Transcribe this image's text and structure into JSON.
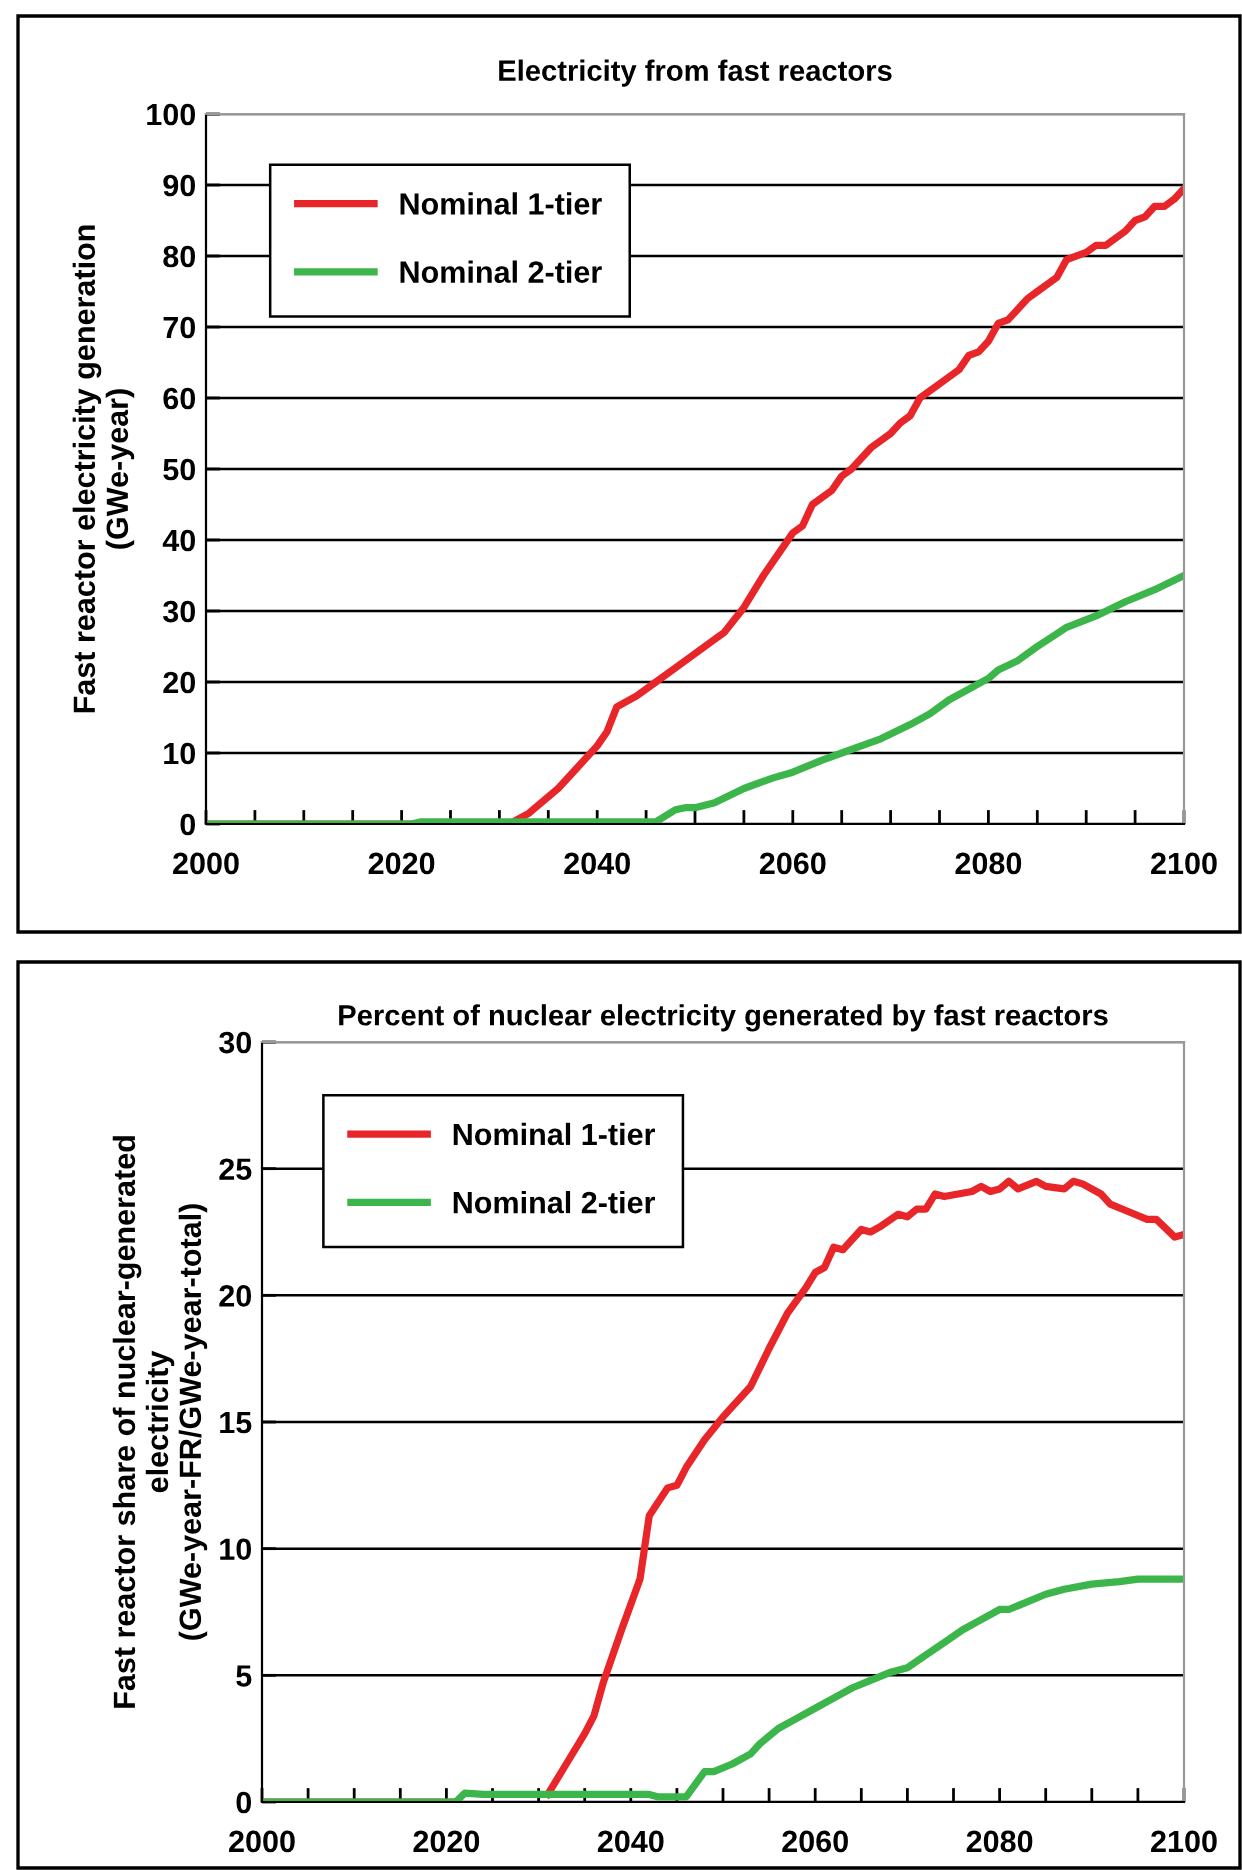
{
  "chart_data": [
    {
      "type": "line",
      "title": "Electricity from fast reactors",
      "ylabel": "Fast reactor electricity generation\n(GWe-year)",
      "xlim": [
        2000,
        2100
      ],
      "ylim": [
        0,
        100
      ],
      "xticks": [
        2000,
        {
          "value": 2005,
          "label": null
        },
        {
          "value": 2010,
          "label": null
        },
        {
          "value": 2015,
          "label": null
        },
        2020,
        {
          "value": 2025,
          "label": null
        },
        {
          "value": 2030,
          "label": null
        },
        {
          "value": 2035,
          "label": null
        },
        2040,
        {
          "value": 2045,
          "label": null
        },
        {
          "value": 2050,
          "label": null
        },
        {
          "value": 2055,
          "label": null
        },
        2060,
        {
          "value": 2065,
          "label": null
        },
        {
          "value": 2070,
          "label": null
        },
        {
          "value": 2075,
          "label": null
        },
        2080,
        {
          "value": 2085,
          "label": null
        },
        {
          "value": 2090,
          "label": null
        },
        {
          "value": 2095,
          "label": null
        },
        2100
      ],
      "yticks": [
        0,
        10,
        20,
        30,
        40,
        50,
        60,
        70,
        80,
        90,
        100
      ],
      "grid": "y",
      "legend": "top left",
      "marker": "none",
      "line_style": "solid",
      "series": [
        {
          "name": "Nominal 1-tier",
          "color": "#e8262a",
          "x": [
            2000,
            2031,
            2033,
            2036,
            2038,
            2040,
            2041,
            2042,
            2044,
            2046,
            2048,
            2050,
            2052,
            2053,
            2055,
            2057,
            2059,
            2060,
            2061,
            2062,
            2064,
            2065,
            2066,
            2068,
            2069,
            2070,
            2071,
            2072,
            2073,
            2075,
            2077,
            2078,
            2079,
            2080,
            2081,
            2082,
            2084,
            2085,
            2087,
            2088,
            2090,
            2091,
            2092,
            2094,
            2095,
            2096,
            2097,
            2098,
            2099,
            2100
          ],
          "values": [
            0,
            0,
            1.5,
            5,
            8,
            11,
            13,
            16.5,
            18,
            20,
            22,
            24,
            26,
            27,
            30.5,
            35,
            39,
            41,
            42,
            45,
            47,
            49,
            50,
            53,
            54,
            55,
            56.5,
            57.5,
            60,
            62,
            64,
            66,
            66.5,
            68,
            70.5,
            71,
            74,
            75,
            77,
            79.5,
            80.5,
            81.5,
            81.5,
            83.5,
            85,
            85.5,
            87,
            87,
            88,
            89.5
          ]
        },
        {
          "name": "Nominal 2-tier",
          "color": "#3cb54a",
          "x": [
            2000,
            2021,
            2022,
            2046,
            2048,
            2049,
            2050,
            2052,
            2055,
            2058,
            2060,
            2063,
            2065,
            2067,
            2069,
            2072,
            2074,
            2076,
            2078,
            2080,
            2081,
            2083,
            2085,
            2087,
            2088,
            2091,
            2094,
            2097,
            2100
          ],
          "values": [
            0,
            0,
            0.3,
            0.3,
            2,
            2.3,
            2.3,
            3,
            5,
            6.5,
            7.3,
            9,
            10,
            11,
            12,
            14,
            15.5,
            17.5,
            19,
            20.5,
            21.7,
            23,
            25,
            26.8,
            27.7,
            29.3,
            31.3,
            33,
            35
          ]
        }
      ]
    },
    {
      "type": "line",
      "title": "Percent of nuclear electricity generated by fast reactors",
      "ylabel": "Fast reactor share of nuclear-generated\nelectricity\n(GWe-year-FR/GWe-year-total)",
      "xlim": [
        2000,
        2100
      ],
      "ylim": [
        0,
        30
      ],
      "xticks": [
        2000,
        {
          "value": 2005,
          "label": null
        },
        {
          "value": 2010,
          "label": null
        },
        {
          "value": 2015,
          "label": null
        },
        2020,
        {
          "value": 2025,
          "label": null
        },
        {
          "value": 2030,
          "label": null
        },
        {
          "value": 2035,
          "label": null
        },
        2040,
        {
          "value": 2045,
          "label": null
        },
        {
          "value": 2050,
          "label": null
        },
        {
          "value": 2055,
          "label": null
        },
        2060,
        {
          "value": 2065,
          "label": null
        },
        {
          "value": 2070,
          "label": null
        },
        {
          "value": 2075,
          "label": null
        },
        2080,
        {
          "value": 2085,
          "label": null
        },
        {
          "value": 2090,
          "label": null
        },
        {
          "value": 2095,
          "label": null
        },
        2100
      ],
      "yticks": [
        0,
        5,
        10,
        15,
        20,
        25,
        30
      ],
      "grid": "y",
      "legend": "top left",
      "marker": "none",
      "line_style": "solid",
      "series": [
        {
          "name": "Nominal 1-tier",
          "color": "#e8262a",
          "x": [
            2000,
            2021,
            2022,
            2031,
            2033,
            2035,
            2036,
            2037,
            2039,
            2041,
            2042,
            2044,
            2045,
            2046,
            2048,
            2050,
            2053,
            2055,
            2057,
            2059,
            2060,
            2061,
            2062,
            2063,
            2065,
            2066,
            2067,
            2069,
            2070,
            2071,
            2072,
            2073,
            2074,
            2077,
            2078,
            2079,
            2080,
            2081,
            2082,
            2084,
            2085,
            2087,
            2088,
            2089,
            2091,
            2092,
            2094,
            2096,
            2097,
            2099,
            2100
          ],
          "values": [
            0,
            0,
            null,
            0.3,
            1.5,
            2.7,
            3.4,
            4.7,
            6.8,
            8.8,
            11.3,
            12.4,
            12.5,
            13.2,
            14.3,
            15.2,
            16.4,
            17.9,
            19.3,
            20.3,
            20.9,
            21.1,
            21.9,
            21.8,
            22.6,
            22.5,
            22.7,
            23.2,
            23.1,
            23.4,
            23.4,
            24.0,
            23.9,
            24.1,
            24.3,
            24.1,
            24.2,
            24.5,
            24.2,
            24.5,
            24.3,
            24.2,
            24.5,
            24.4,
            24.0,
            23.6,
            23.3,
            23.0,
            23.0,
            22.3,
            22.4
          ]
        },
        {
          "name": "Nominal 2-tier",
          "color": "#3cb54a",
          "x": [
            2000,
            2021,
            2022,
            2024,
            2042,
            2043,
            2046,
            2048,
            2049,
            2051,
            2053,
            2054,
            2056,
            2058,
            2060,
            2062,
            2064,
            2066,
            2068,
            2070,
            2072,
            2074,
            2076,
            2078,
            2080,
            2081,
            2083,
            2085,
            2087,
            2090,
            2093,
            2095,
            2100
          ],
          "values": [
            0,
            0,
            0.35,
            0.3,
            0.3,
            0.2,
            0.2,
            1.2,
            1.2,
            1.5,
            1.9,
            2.3,
            2.9,
            3.3,
            3.7,
            4.1,
            4.5,
            4.8,
            5.1,
            5.3,
            5.8,
            6.3,
            6.8,
            7.2,
            7.6,
            7.6,
            7.9,
            8.2,
            8.4,
            8.6,
            8.7,
            8.8,
            8.8
          ]
        }
      ]
    }
  ]
}
